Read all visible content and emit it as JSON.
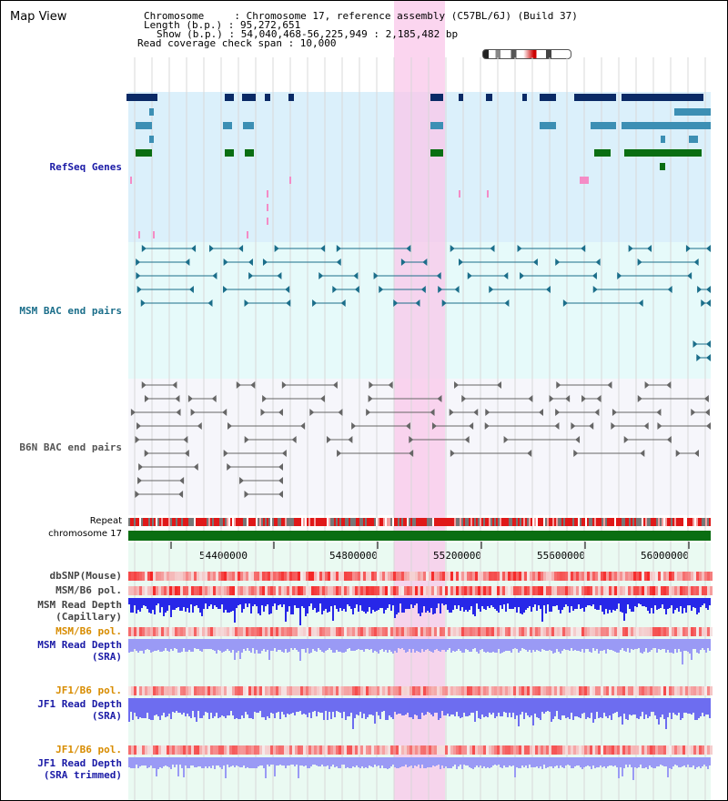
{
  "title": "Map View",
  "header": {
    "chromosome": "Chromosome     : Chromosome 17, reference assembly (C57BL/6J) (Build 37)",
    "length": "Length (b.p.) : 95,272,651",
    "show": "Show (b.p.) : 54,040,468-56,225,949 : 2,185,482 bp",
    "span": "Read coverage check span : 10,000"
  },
  "tracks": {
    "refseq": "RefSeq Genes",
    "msm_bac": "MSM BAC end pairs",
    "b6n_bac": "B6N BAC end pairs",
    "repeat": "Repeat",
    "chromosome": "chromosome 17",
    "dbsnp": "dbSNP(Mouse)",
    "msm_b6_pol_1": "MSM/B6 pol.",
    "msm_read_depth_cap_1": "MSM Read Depth",
    "msm_read_depth_cap_2": "(Capillary)",
    "msm_b6_pol_2": "MSM/B6 pol.",
    "msm_read_depth_sra_1": "MSM Read Depth",
    "msm_read_depth_sra_2": "(SRA)",
    "jf1_b6_pol": "JF1/B6 pol.",
    "jf1_read_depth_sra_1": "JF1 Read Depth",
    "jf1_read_depth_sra_2": "(SRA)",
    "jf1_b6_pol_2": "JF1/B6 pol.",
    "jf1_read_depth_trim_1": "JF1 Read Depth",
    "jf1_read_depth_trim_2": "(SRA trimmed)"
  },
  "axis": {
    "ticks": [
      "54400000",
      "54800000",
      "55200000",
      "55600000",
      "56000000"
    ]
  },
  "colors": {
    "highlight": "#f9d7ef",
    "refseq_bg": "#dbf0fb",
    "msm_bg": "#e6fafa",
    "b6n_bg": "#f6f6fb",
    "navy": "#0a2a66",
    "teal": "#3c8fb4",
    "green": "#0a6e12",
    "label_blue": "#1a1aa6",
    "label_teal": "#1b6e8a",
    "label_orange": "#d88c00"
  }
}
